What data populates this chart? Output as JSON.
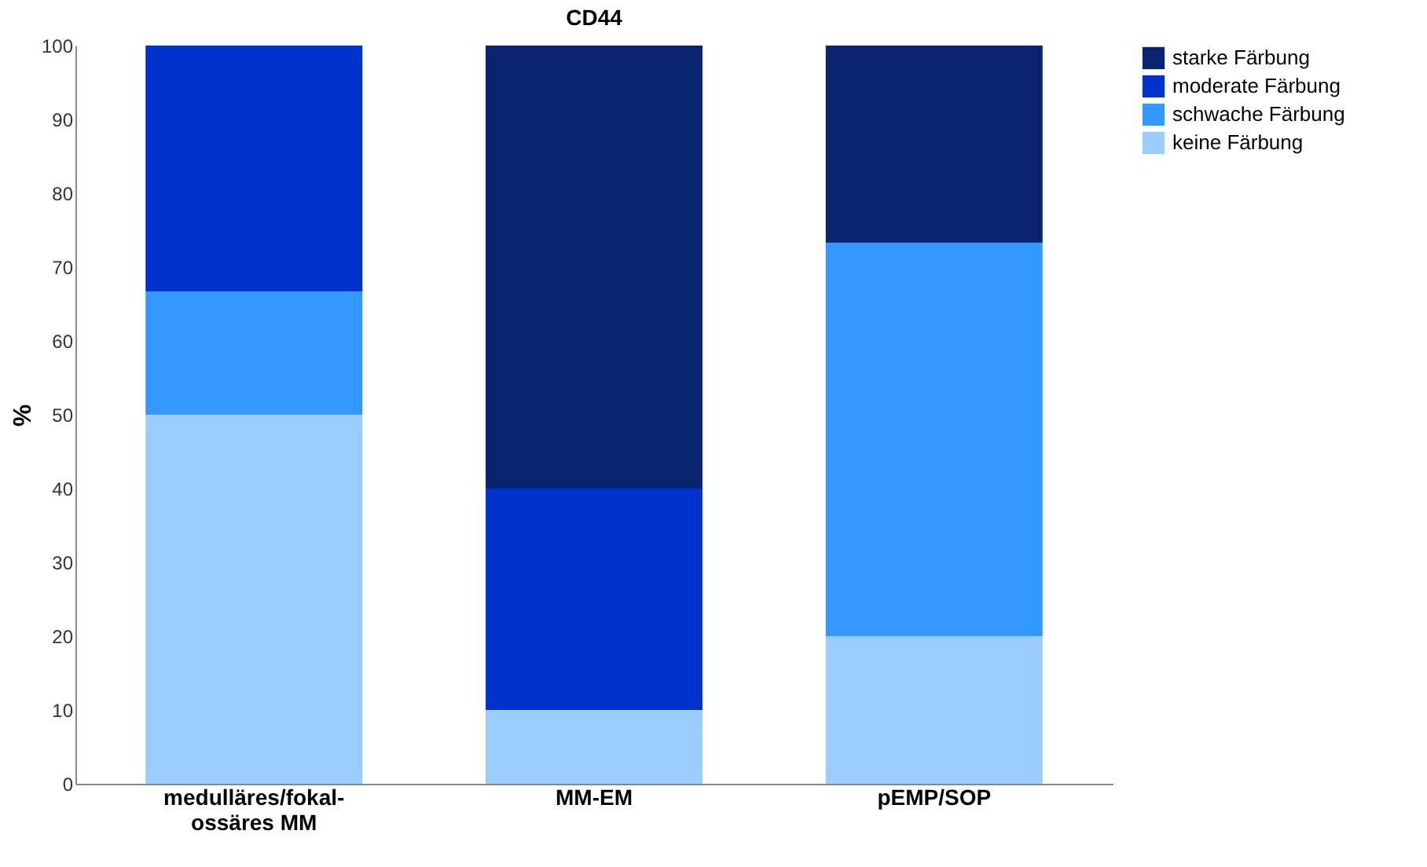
{
  "chart_data": {
    "type": "bar",
    "title": "CD44",
    "ylabel": "%",
    "categories": [
      "medulläres/fokal-\nossäres MM",
      "MM-EM",
      "pEMP/SOP"
    ],
    "stacked": true,
    "legend": "top right",
    "grid": false,
    "ylim": [
      0,
      100
    ],
    "yticks": [
      0,
      10,
      20,
      30,
      40,
      50,
      60,
      70,
      80,
      90,
      100
    ],
    "series": [
      {
        "name": "keine Färbung",
        "color": "#99ccff",
        "values": [
          50,
          10,
          20
        ]
      },
      {
        "name": "schwache Färbung",
        "color": "#3399ff",
        "values": [
          16.7,
          0,
          53.3
        ]
      },
      {
        "name": "moderate Färbung",
        "color": "#0033cc",
        "values": [
          33.3,
          30,
          0
        ]
      },
      {
        "name": "starke Färbung",
        "color": "#0a2570",
        "values": [
          0,
          60,
          26.7
        ]
      }
    ]
  }
}
